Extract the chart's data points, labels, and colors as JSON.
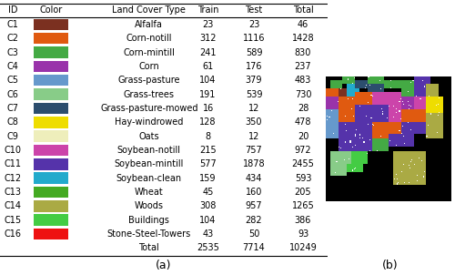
{
  "rows": [
    {
      "id": "C1",
      "color": "#7B3020",
      "name": "Alfalfa",
      "train": 23,
      "test": 23,
      "total": 46
    },
    {
      "id": "C2",
      "color": "#E05A10",
      "name": "Corn-notill",
      "train": 312,
      "test": 1116,
      "total": 1428
    },
    {
      "id": "C3",
      "color": "#44AA44",
      "name": "Corn-mintill",
      "train": 241,
      "test": 589,
      "total": 830
    },
    {
      "id": "C4",
      "color": "#9933AA",
      "name": "Corn",
      "train": 61,
      "test": 176,
      "total": 237
    },
    {
      "id": "C5",
      "color": "#6699CC",
      "name": "Grass-pasture",
      "train": 104,
      "test": 379,
      "total": 483
    },
    {
      "id": "C6",
      "color": "#88CC88",
      "name": "Grass-trees",
      "train": 191,
      "test": 539,
      "total": 730
    },
    {
      "id": "C7",
      "color": "#2C4E6E",
      "name": "Grass-pasture-mowed",
      "train": 16,
      "test": 12,
      "total": 28
    },
    {
      "id": "C8",
      "color": "#EEDD00",
      "name": "Hay-windrowed",
      "train": 128,
      "test": 350,
      "total": 478
    },
    {
      "id": "C9",
      "color": "#EEEEBB",
      "name": "Oats",
      "train": 8,
      "test": 12,
      "total": 20
    },
    {
      "id": "C10",
      "color": "#CC44AA",
      "name": "Soybean-notill",
      "train": 215,
      "test": 757,
      "total": 972
    },
    {
      "id": "C11",
      "color": "#5533AA",
      "name": "Soybean-mintill",
      "train": 577,
      "test": 1878,
      "total": 2455
    },
    {
      "id": "C12",
      "color": "#22AACC",
      "name": "Soybean-clean",
      "train": 159,
      "test": 434,
      "total": 593
    },
    {
      "id": "C13",
      "color": "#44AA22",
      "name": "Wheat",
      "train": 45,
      "test": 160,
      "total": 205
    },
    {
      "id": "C14",
      "color": "#AAAA44",
      "name": "Woods",
      "train": 308,
      "test": 957,
      "total": 1265
    },
    {
      "id": "C15",
      "color": "#44CC44",
      "name": "Buildings",
      "train": 104,
      "test": 282,
      "total": 386
    },
    {
      "id": "C16",
      "color": "#EE1111",
      "name": "Stone-Steel-Towers",
      "train": 43,
      "test": 50,
      "total": 93
    }
  ],
  "total_train": 2535,
  "total_test": 7714,
  "total_total": 10249,
  "caption_a": "(a)",
  "caption_b": "(b)",
  "col_headers": [
    "ID",
    "Color",
    "Land Cover Type",
    "Train",
    "Test",
    "Total"
  ],
  "figure_width": 5.0,
  "figure_height": 3.02,
  "bg_color": "#FFFFFF",
  "colors_rgb": {
    "C1": [
      123,
      48,
      32
    ],
    "C2": [
      224,
      90,
      16
    ],
    "C3": [
      68,
      170,
      68
    ],
    "C4": [
      153,
      51,
      170
    ],
    "C5": [
      102,
      153,
      204
    ],
    "C6": [
      136,
      204,
      136
    ],
    "C7": [
      44,
      78,
      110
    ],
    "C8": [
      238,
      221,
      0
    ],
    "C9": [
      238,
      238,
      187
    ],
    "C10": [
      204,
      68,
      170
    ],
    "C11": [
      85,
      51,
      170
    ],
    "C12": [
      34,
      170,
      204
    ],
    "C13": [
      68,
      170,
      34
    ],
    "C14": [
      170,
      170,
      68
    ],
    "C15": [
      68,
      204,
      68
    ],
    "C16": [
      238,
      17,
      17
    ]
  },
  "map_rects": [
    [
      5,
      2,
      10,
      3,
      "C3"
    ],
    [
      1,
      4,
      6,
      3,
      "C3"
    ],
    [
      16,
      3,
      6,
      2,
      "C3"
    ],
    [
      23,
      3,
      5,
      3,
      "C11"
    ],
    [
      0,
      5,
      4,
      3,
      "C2"
    ],
    [
      4,
      5,
      2,
      2,
      "C1"
    ],
    [
      6,
      5,
      3,
      3,
      "C12"
    ],
    [
      11,
      5,
      6,
      3,
      "C7"
    ],
    [
      20,
      4,
      4,
      2,
      "C3"
    ],
    [
      17,
      5,
      4,
      3,
      "C11"
    ],
    [
      24,
      5,
      4,
      4,
      "C8"
    ],
    [
      6,
      8,
      4,
      3,
      "C2"
    ],
    [
      10,
      7,
      3,
      4,
      "C2"
    ],
    [
      0,
      8,
      4,
      4,
      "C4"
    ],
    [
      4,
      9,
      4,
      4,
      "C2"
    ],
    [
      13,
      8,
      4,
      3,
      "C10"
    ],
    [
      17,
      8,
      5,
      4,
      "C10"
    ],
    [
      22,
      9,
      3,
      3,
      "C14"
    ],
    [
      8,
      11,
      6,
      4,
      "C11"
    ],
    [
      14,
      11,
      4,
      5,
      "C11"
    ],
    [
      0,
      12,
      4,
      5,
      "C5"
    ],
    [
      4,
      13,
      4,
      5,
      "C11"
    ],
    [
      18,
      12,
      5,
      4,
      "C2"
    ],
    [
      23,
      12,
      5,
      4,
      "C14"
    ],
    [
      8,
      15,
      5,
      4,
      "C11"
    ],
    [
      13,
      16,
      4,
      4,
      "C2"
    ],
    [
      17,
      16,
      3,
      3,
      "C12"
    ],
    [
      0,
      17,
      4,
      4,
      "C5"
    ],
    [
      4,
      18,
      5,
      4,
      "C11"
    ],
    [
      9,
      19,
      4,
      4,
      "C11"
    ],
    [
      13,
      20,
      4,
      3,
      "C3"
    ],
    [
      17,
      19,
      4,
      3,
      "C11"
    ],
    [
      21,
      17,
      3,
      3,
      "C2"
    ],
    [
      0,
      21,
      5,
      3,
      "C6"
    ],
    [
      5,
      21,
      5,
      3,
      "C13"
    ],
    [
      4,
      22,
      4,
      3,
      "C15"
    ],
    [
      18,
      21,
      9,
      4,
      "C14"
    ],
    [
      5,
      24,
      5,
      3,
      "C6"
    ],
    [
      10,
      24,
      4,
      3,
      "C15"
    ],
    [
      18,
      25,
      9,
      4,
      "C14"
    ]
  ]
}
